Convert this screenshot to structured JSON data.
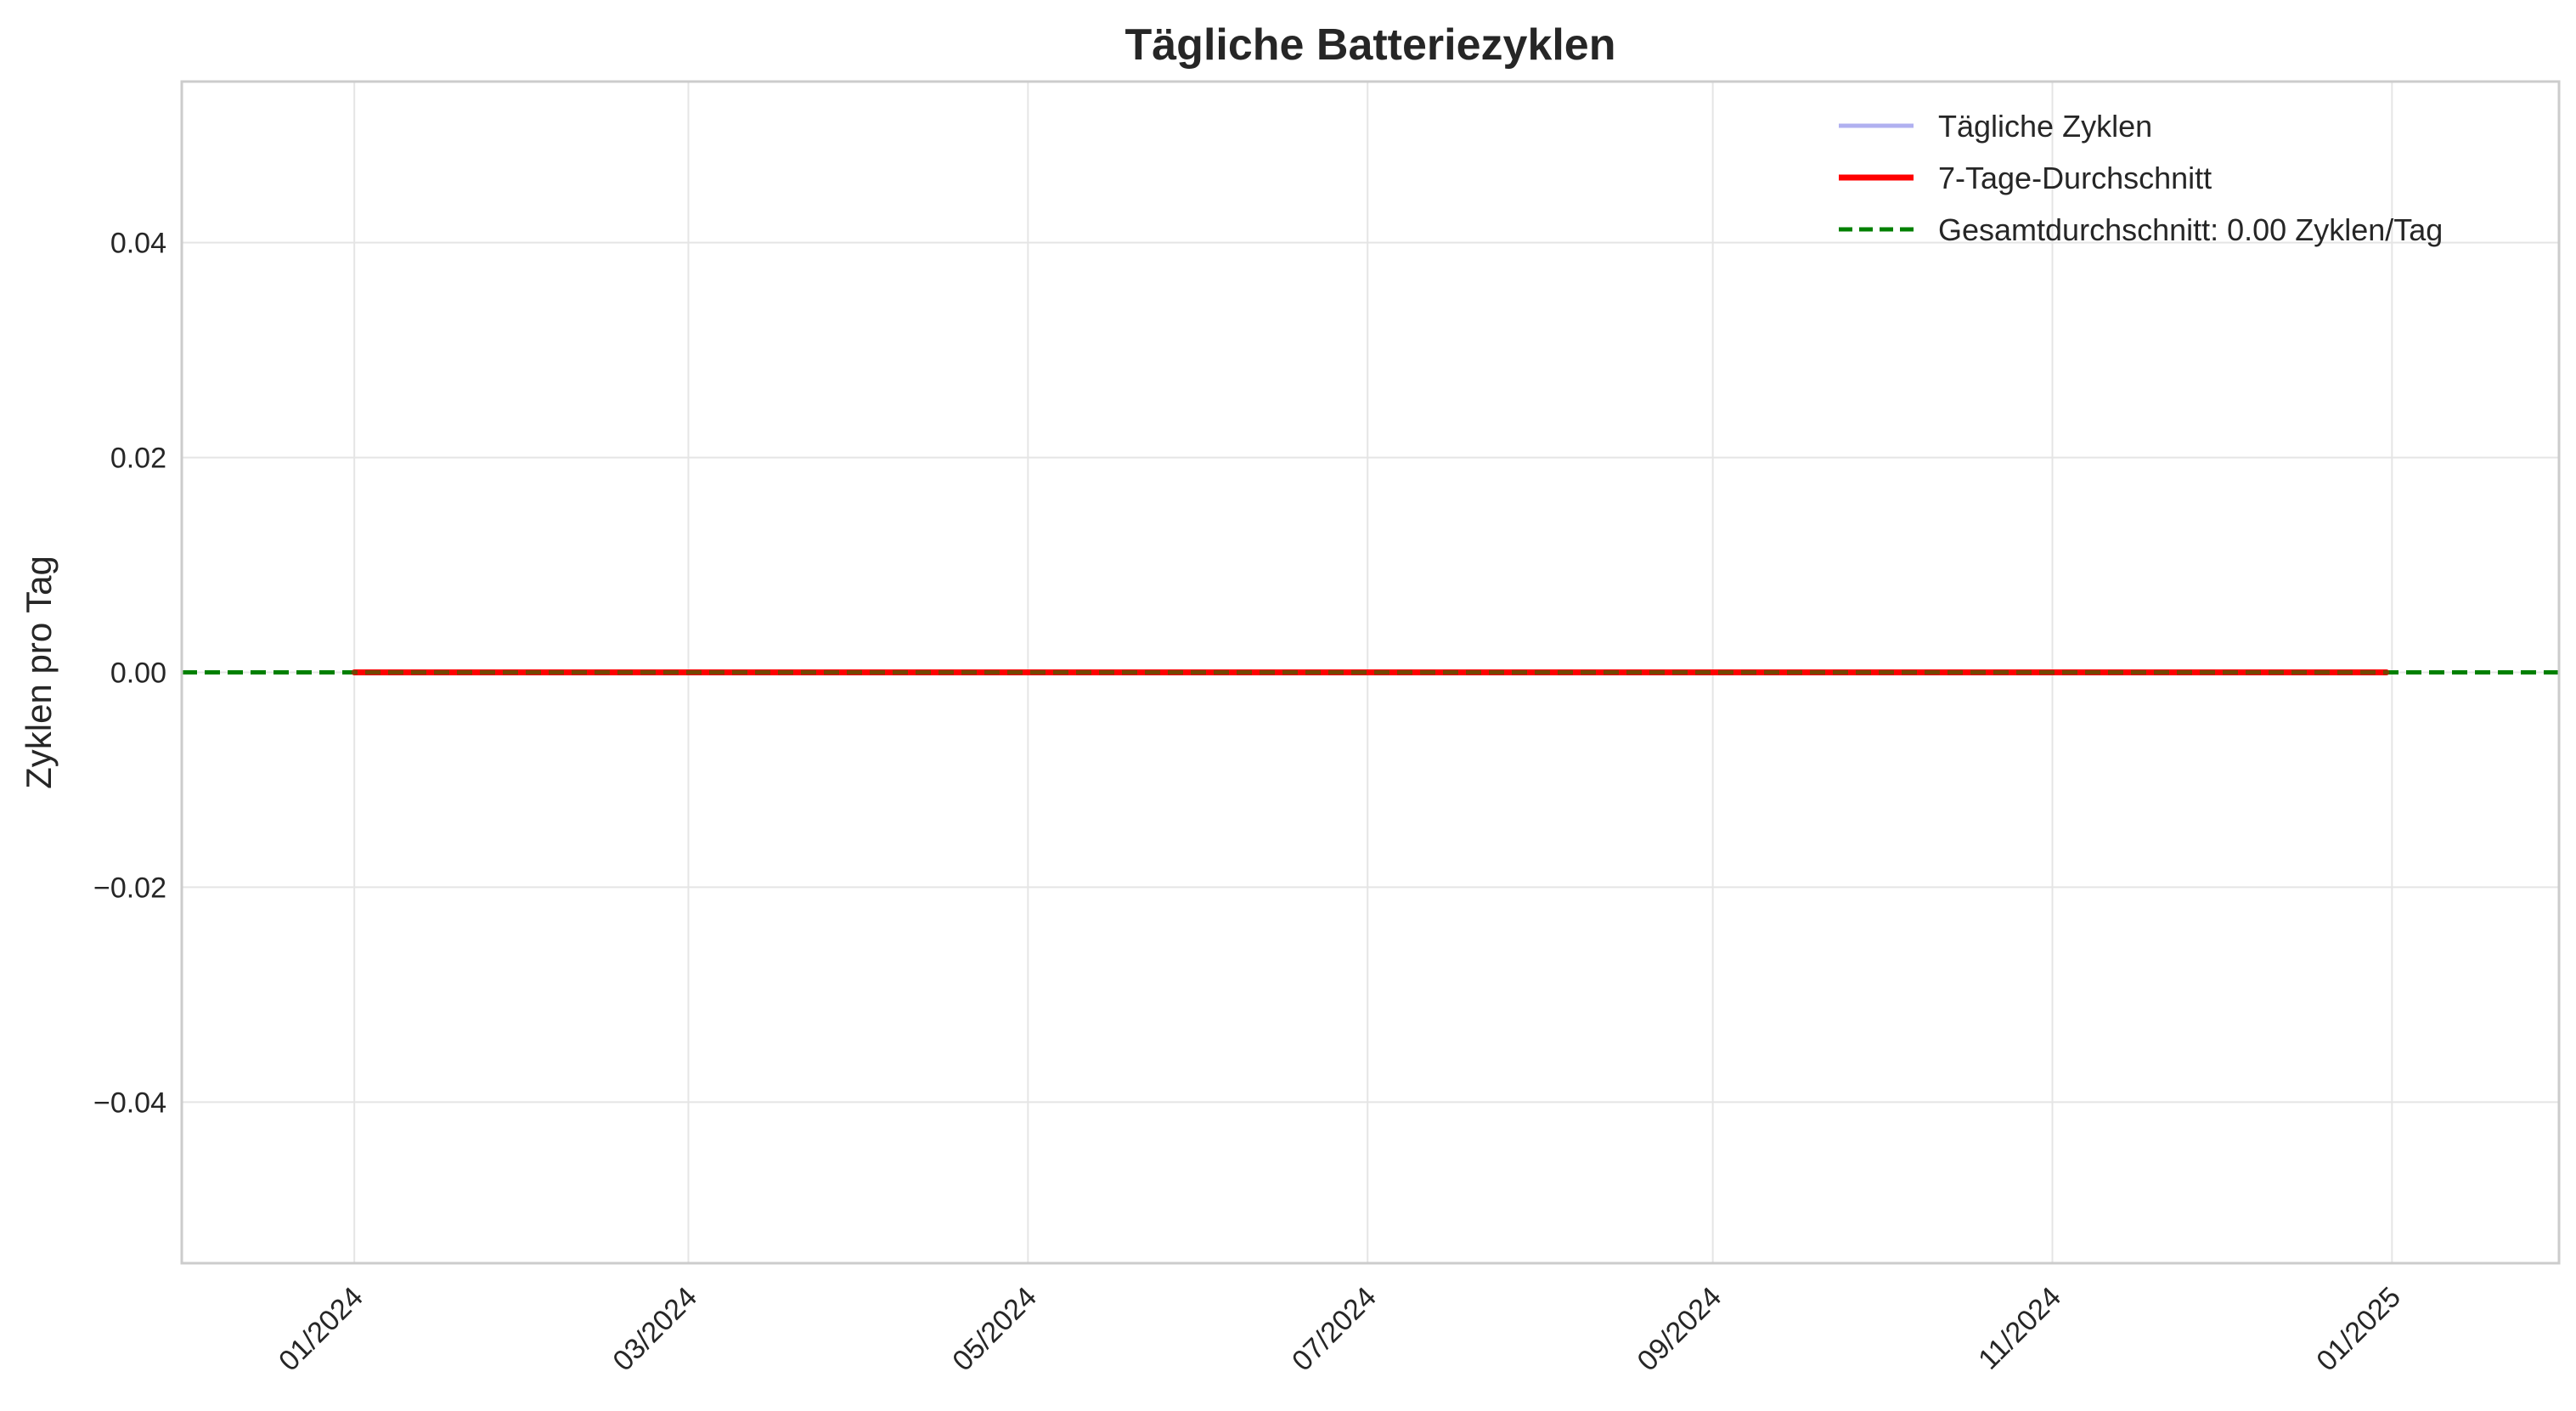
{
  "chart_data": {
    "type": "line",
    "title": "Tägliche Batteriezyklen",
    "xlabel": "",
    "ylabel": "Zyklen pro Tag",
    "x_type": "date",
    "xlim": [
      "2023-12-01",
      "2025-01-31"
    ],
    "ylim": [
      -0.055,
      0.055
    ],
    "grid": true,
    "legend_position": "top-right",
    "x_ticks": [
      {
        "value": "2024-01-01",
        "label": "01/2024"
      },
      {
        "value": "2024-03-01",
        "label": "03/2024"
      },
      {
        "value": "2024-05-01",
        "label": "05/2024"
      },
      {
        "value": "2024-07-01",
        "label": "07/2024"
      },
      {
        "value": "2024-09-01",
        "label": "09/2024"
      },
      {
        "value": "2024-11-01",
        "label": "11/2024"
      },
      {
        "value": "2025-01-01",
        "label": "01/2025"
      }
    ],
    "y_ticks": [
      {
        "value": -0.04,
        "label": "−0.04"
      },
      {
        "value": -0.02,
        "label": "−0.02"
      },
      {
        "value": 0.0,
        "label": "0.00"
      },
      {
        "value": 0.02,
        "label": "0.02"
      },
      {
        "value": 0.04,
        "label": "0.04"
      }
    ],
    "series": [
      {
        "name": "Tägliche Zyklen",
        "color": "#b0b0f0",
        "style": "solid",
        "x": [
          "2024-01-01",
          "2024-03-01",
          "2024-05-01",
          "2024-07-01",
          "2024-09-01",
          "2024-11-01",
          "2024-12-31"
        ],
        "y": [
          0,
          0,
          0,
          0,
          0,
          0,
          0
        ]
      },
      {
        "name": "7-Tage-Durchschnitt",
        "color": "#ff0000",
        "style": "solid",
        "x": [
          "2024-01-01",
          "2024-03-01",
          "2024-05-01",
          "2024-07-01",
          "2024-09-01",
          "2024-11-01",
          "2024-12-31"
        ],
        "y": [
          0,
          0,
          0,
          0,
          0,
          0,
          0
        ]
      }
    ],
    "hlines": [
      {
        "name": "Gesamtdurchschnitt: 0.00 Zyklen/Tag",
        "color": "#008000",
        "style": "dashed",
        "y": 0.0
      }
    ]
  }
}
